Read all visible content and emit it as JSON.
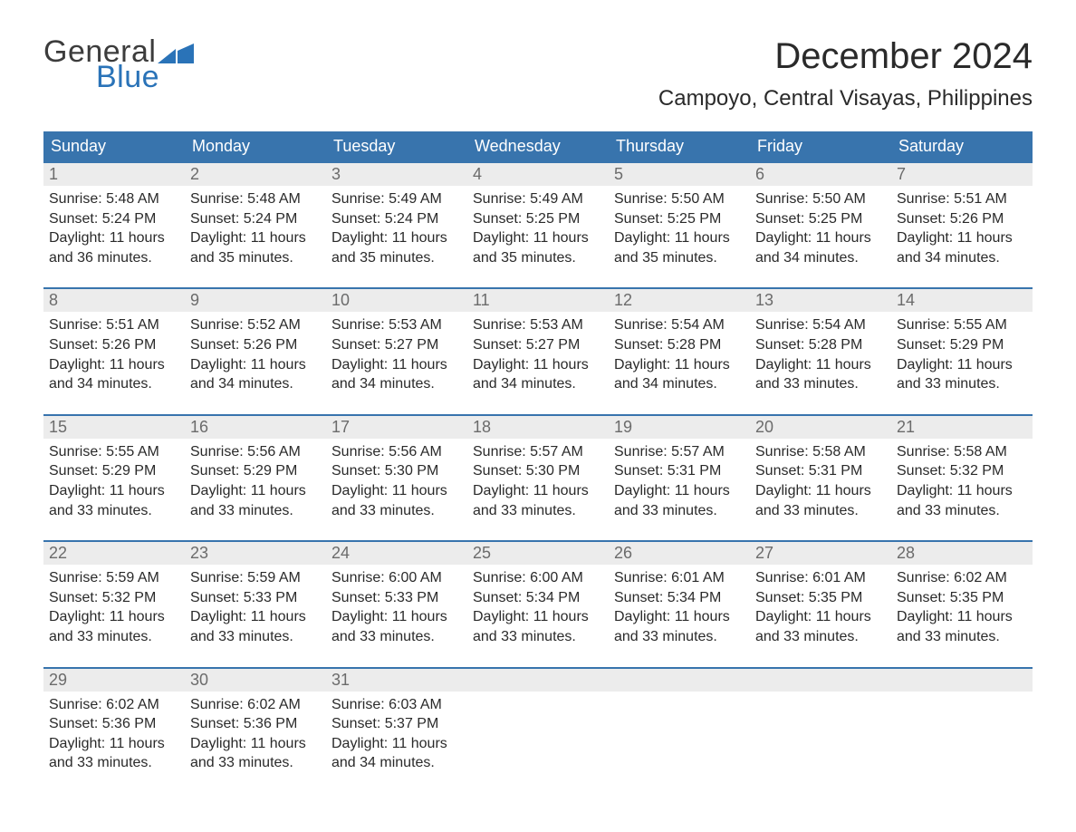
{
  "brand": {
    "part1": "General",
    "part2": "Blue",
    "color1": "#3c3c3c",
    "color2": "#2a73b8"
  },
  "title": "December 2024",
  "location": "Campoyo, Central Visayas, Philippines",
  "colors": {
    "header_bg": "#3874ad",
    "header_text": "#ffffff",
    "week_border": "#3874ad",
    "daynum_bg": "#ececec",
    "daynum_text": "#6b6b6b",
    "body_text": "#2a2a2a",
    "page_bg": "#ffffff"
  },
  "weekdays": [
    "Sunday",
    "Monday",
    "Tuesday",
    "Wednesday",
    "Thursday",
    "Friday",
    "Saturday"
  ],
  "weeks": [
    [
      {
        "n": "1",
        "sr": "Sunrise: 5:48 AM",
        "ss": "Sunset: 5:24 PM",
        "dl": "Daylight: 11 hours and 36 minutes."
      },
      {
        "n": "2",
        "sr": "Sunrise: 5:48 AM",
        "ss": "Sunset: 5:24 PM",
        "dl": "Daylight: 11 hours and 35 minutes."
      },
      {
        "n": "3",
        "sr": "Sunrise: 5:49 AM",
        "ss": "Sunset: 5:24 PM",
        "dl": "Daylight: 11 hours and 35 minutes."
      },
      {
        "n": "4",
        "sr": "Sunrise: 5:49 AM",
        "ss": "Sunset: 5:25 PM",
        "dl": "Daylight: 11 hours and 35 minutes."
      },
      {
        "n": "5",
        "sr": "Sunrise: 5:50 AM",
        "ss": "Sunset: 5:25 PM",
        "dl": "Daylight: 11 hours and 35 minutes."
      },
      {
        "n": "6",
        "sr": "Sunrise: 5:50 AM",
        "ss": "Sunset: 5:25 PM",
        "dl": "Daylight: 11 hours and 34 minutes."
      },
      {
        "n": "7",
        "sr": "Sunrise: 5:51 AM",
        "ss": "Sunset: 5:26 PM",
        "dl": "Daylight: 11 hours and 34 minutes."
      }
    ],
    [
      {
        "n": "8",
        "sr": "Sunrise: 5:51 AM",
        "ss": "Sunset: 5:26 PM",
        "dl": "Daylight: 11 hours and 34 minutes."
      },
      {
        "n": "9",
        "sr": "Sunrise: 5:52 AM",
        "ss": "Sunset: 5:26 PM",
        "dl": "Daylight: 11 hours and 34 minutes."
      },
      {
        "n": "10",
        "sr": "Sunrise: 5:53 AM",
        "ss": "Sunset: 5:27 PM",
        "dl": "Daylight: 11 hours and 34 minutes."
      },
      {
        "n": "11",
        "sr": "Sunrise: 5:53 AM",
        "ss": "Sunset: 5:27 PM",
        "dl": "Daylight: 11 hours and 34 minutes."
      },
      {
        "n": "12",
        "sr": "Sunrise: 5:54 AM",
        "ss": "Sunset: 5:28 PM",
        "dl": "Daylight: 11 hours and 34 minutes."
      },
      {
        "n": "13",
        "sr": "Sunrise: 5:54 AM",
        "ss": "Sunset: 5:28 PM",
        "dl": "Daylight: 11 hours and 33 minutes."
      },
      {
        "n": "14",
        "sr": "Sunrise: 5:55 AM",
        "ss": "Sunset: 5:29 PM",
        "dl": "Daylight: 11 hours and 33 minutes."
      }
    ],
    [
      {
        "n": "15",
        "sr": "Sunrise: 5:55 AM",
        "ss": "Sunset: 5:29 PM",
        "dl": "Daylight: 11 hours and 33 minutes."
      },
      {
        "n": "16",
        "sr": "Sunrise: 5:56 AM",
        "ss": "Sunset: 5:29 PM",
        "dl": "Daylight: 11 hours and 33 minutes."
      },
      {
        "n": "17",
        "sr": "Sunrise: 5:56 AM",
        "ss": "Sunset: 5:30 PM",
        "dl": "Daylight: 11 hours and 33 minutes."
      },
      {
        "n": "18",
        "sr": "Sunrise: 5:57 AM",
        "ss": "Sunset: 5:30 PM",
        "dl": "Daylight: 11 hours and 33 minutes."
      },
      {
        "n": "19",
        "sr": "Sunrise: 5:57 AM",
        "ss": "Sunset: 5:31 PM",
        "dl": "Daylight: 11 hours and 33 minutes."
      },
      {
        "n": "20",
        "sr": "Sunrise: 5:58 AM",
        "ss": "Sunset: 5:31 PM",
        "dl": "Daylight: 11 hours and 33 minutes."
      },
      {
        "n": "21",
        "sr": "Sunrise: 5:58 AM",
        "ss": "Sunset: 5:32 PM",
        "dl": "Daylight: 11 hours and 33 minutes."
      }
    ],
    [
      {
        "n": "22",
        "sr": "Sunrise: 5:59 AM",
        "ss": "Sunset: 5:32 PM",
        "dl": "Daylight: 11 hours and 33 minutes."
      },
      {
        "n": "23",
        "sr": "Sunrise: 5:59 AM",
        "ss": "Sunset: 5:33 PM",
        "dl": "Daylight: 11 hours and 33 minutes."
      },
      {
        "n": "24",
        "sr": "Sunrise: 6:00 AM",
        "ss": "Sunset: 5:33 PM",
        "dl": "Daylight: 11 hours and 33 minutes."
      },
      {
        "n": "25",
        "sr": "Sunrise: 6:00 AM",
        "ss": "Sunset: 5:34 PM",
        "dl": "Daylight: 11 hours and 33 minutes."
      },
      {
        "n": "26",
        "sr": "Sunrise: 6:01 AM",
        "ss": "Sunset: 5:34 PM",
        "dl": "Daylight: 11 hours and 33 minutes."
      },
      {
        "n": "27",
        "sr": "Sunrise: 6:01 AM",
        "ss": "Sunset: 5:35 PM",
        "dl": "Daylight: 11 hours and 33 minutes."
      },
      {
        "n": "28",
        "sr": "Sunrise: 6:02 AM",
        "ss": "Sunset: 5:35 PM",
        "dl": "Daylight: 11 hours and 33 minutes."
      }
    ],
    [
      {
        "n": "29",
        "sr": "Sunrise: 6:02 AM",
        "ss": "Sunset: 5:36 PM",
        "dl": "Daylight: 11 hours and 33 minutes."
      },
      {
        "n": "30",
        "sr": "Sunrise: 6:02 AM",
        "ss": "Sunset: 5:36 PM",
        "dl": "Daylight: 11 hours and 33 minutes."
      },
      {
        "n": "31",
        "sr": "Sunrise: 6:03 AM",
        "ss": "Sunset: 5:37 PM",
        "dl": "Daylight: 11 hours and 34 minutes."
      },
      null,
      null,
      null,
      null
    ]
  ]
}
